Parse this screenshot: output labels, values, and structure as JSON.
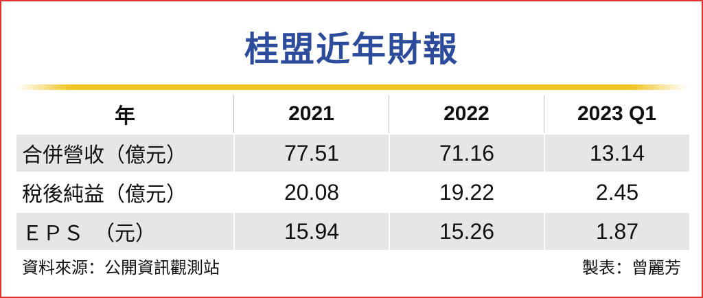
{
  "header": {
    "title": "桂盟近年財報"
  },
  "table": {
    "columns": [
      "年",
      "2021",
      "2022",
      "2023 Q1"
    ],
    "rows": [
      [
        "合併營收（億元）",
        "77.51",
        "71.16",
        "13.14"
      ],
      [
        "稅後純益（億元）",
        "20.08",
        "19.22",
        "2.45"
      ],
      [
        "ＥＰＳ　（元）",
        "15.94",
        "15.26",
        "1.87"
      ]
    ]
  },
  "footer": {
    "source": "資料來源：公開資訊觀測站",
    "credit": "製表：曾麗芳"
  }
}
